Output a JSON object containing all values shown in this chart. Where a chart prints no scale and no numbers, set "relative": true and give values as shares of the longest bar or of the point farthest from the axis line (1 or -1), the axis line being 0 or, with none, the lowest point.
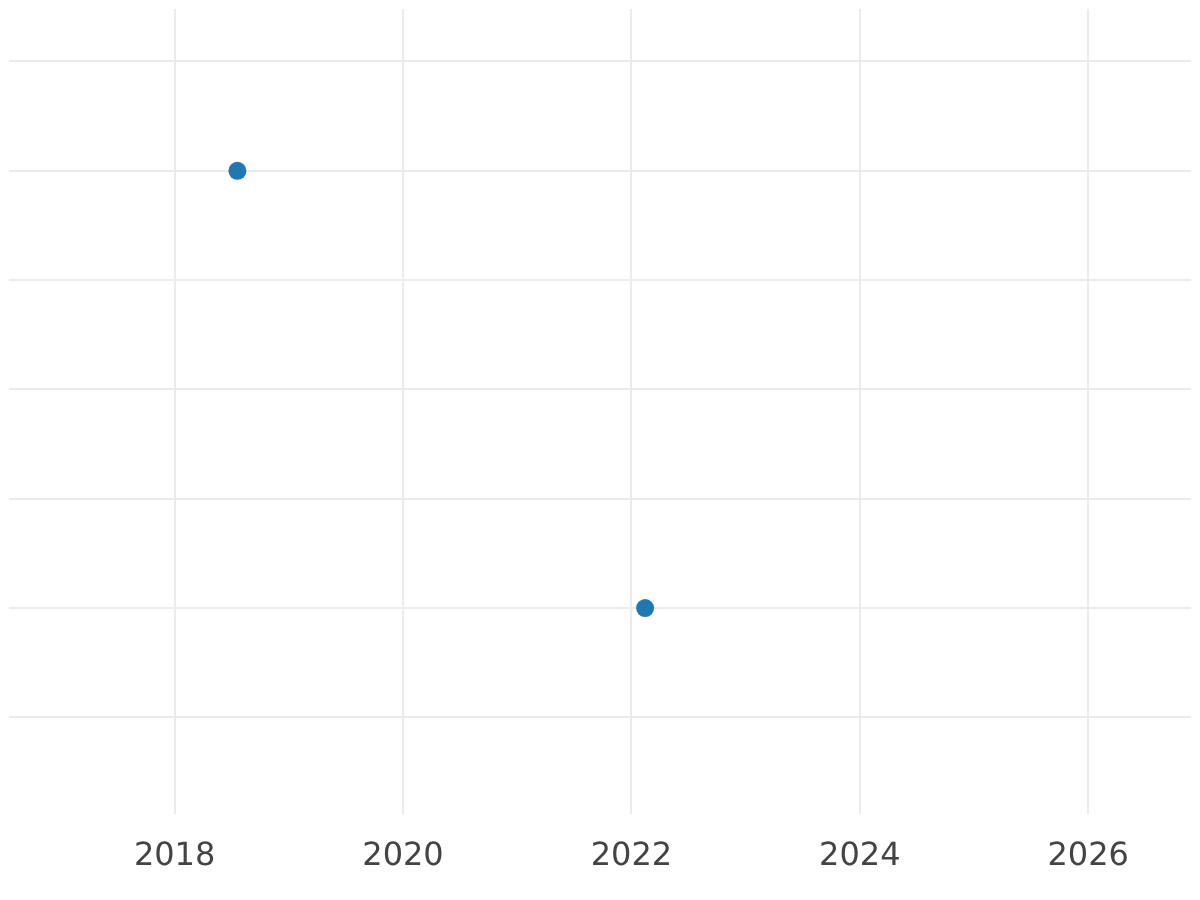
{
  "chart_data": {
    "type": "scatter",
    "relative": true,
    "x": [
      2018.55,
      2022.12
    ],
    "series": [
      {
        "color": "#1f77b4",
        "values": [
          1,
          0
        ]
      }
    ],
    "xlim": [
      2016.55,
      2026.9
    ],
    "xticks": [
      2018,
      2020,
      2022,
      2024,
      2026
    ],
    "grid": true,
    "marker": "circle",
    "legend": false
  }
}
